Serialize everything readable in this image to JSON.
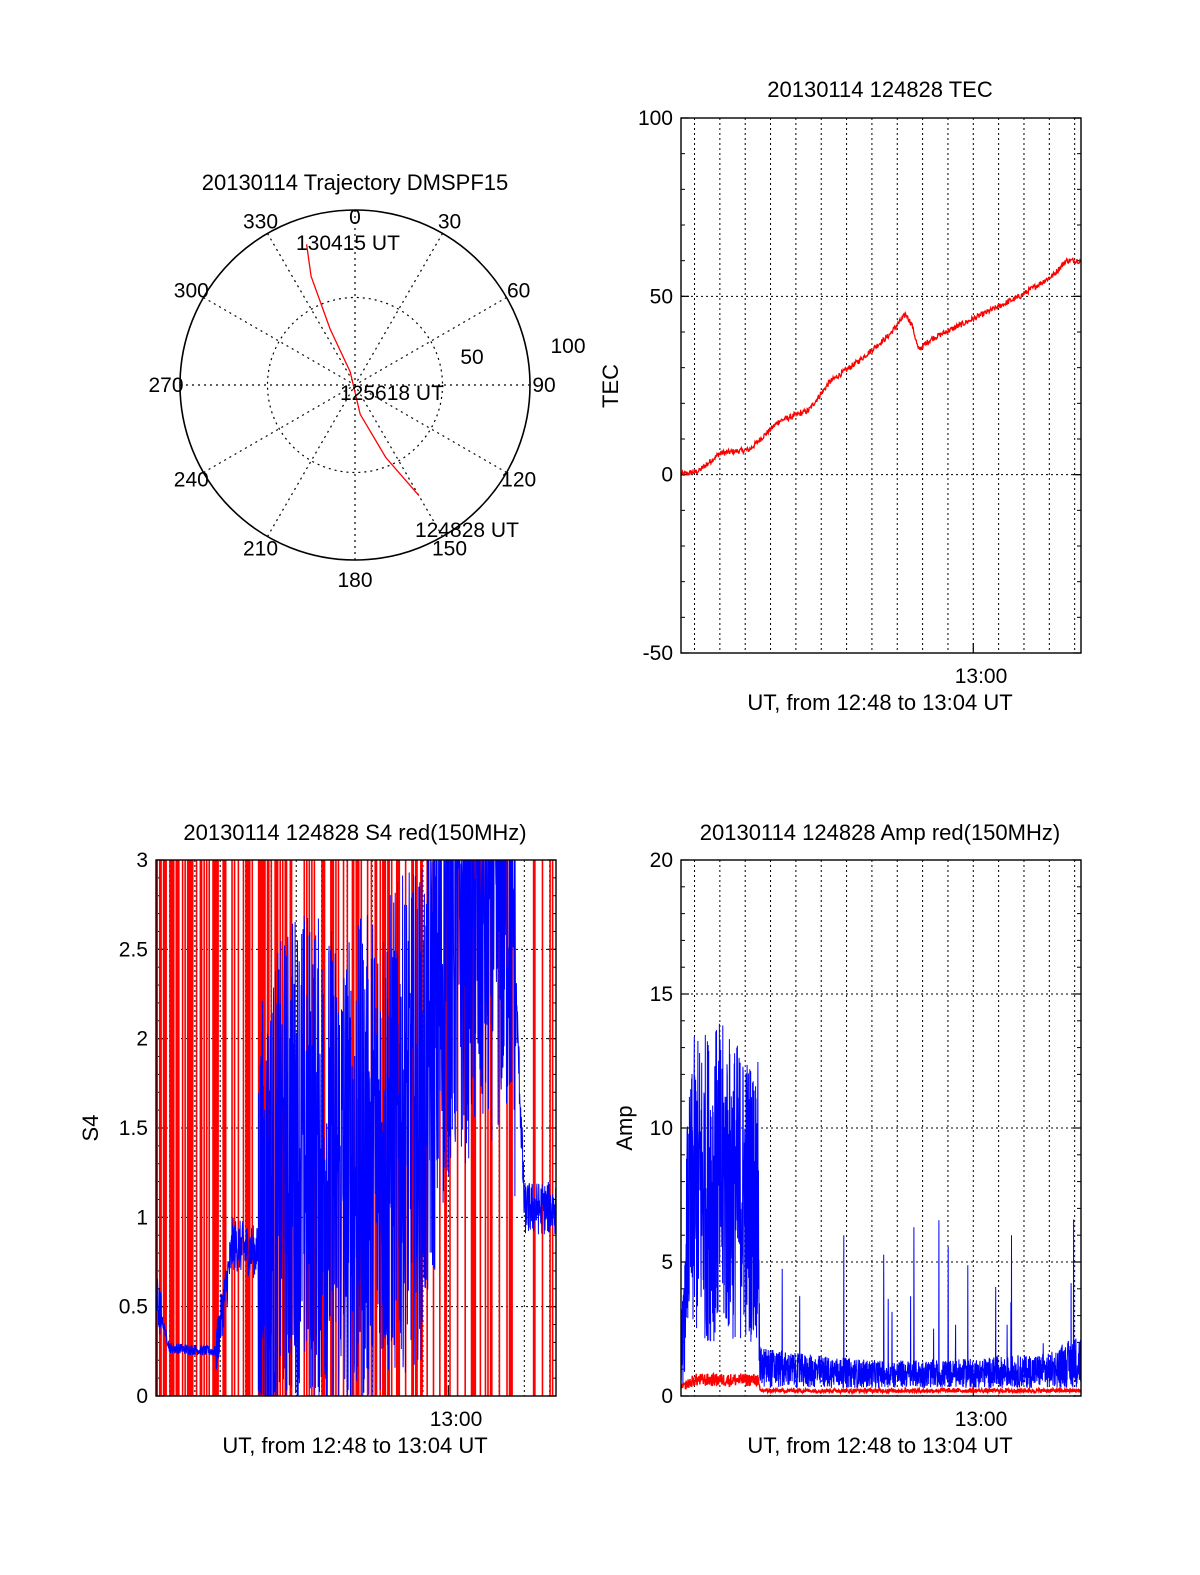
{
  "colors": {
    "red": "#ff0000",
    "blue": "#0000ff",
    "axis": "#000000",
    "grid": "#000000"
  },
  "chart_data": [
    {
      "id": "trajectory",
      "type": "polar",
      "title": "20130114 Trajectory DMSPF15",
      "angle_labels": [
        "0",
        "30",
        "60",
        "90",
        "120",
        "150",
        "180",
        "210",
        "240",
        "270",
        "300",
        "330"
      ],
      "radius_labels": [
        "50",
        "100"
      ],
      "r_max": 100,
      "grid": true,
      "track": {
        "start_label": "124828 UT",
        "mid_label": "125618 UT",
        "end_label": "130415 UT",
        "points": [
          {
            "az": 150,
            "r": 73
          },
          {
            "az": 157,
            "r": 45
          },
          {
            "az": 170,
            "r": 17
          },
          {
            "az": 340,
            "r": 8
          },
          {
            "az": 336,
            "r": 35
          },
          {
            "az": 338,
            "r": 67
          },
          {
            "az": 341,
            "r": 85
          }
        ]
      }
    },
    {
      "id": "tec",
      "type": "line",
      "title": "20130114 124828 TEC",
      "xlabel": "UT, from 12:48 to 13:04 UT",
      "ylabel": "TEC",
      "xlim": [
        "12:48:28",
        "13:04:15"
      ],
      "ylim": [
        -50,
        100
      ],
      "y_ticks": [
        "100",
        "50",
        "0",
        "-50"
      ],
      "x_ticks": [
        "13:00"
      ],
      "grid": true,
      "series": [
        {
          "color": "red",
          "x": [
            "12:48:28",
            "12:49:10",
            "12:50:00",
            "12:51:10",
            "12:52:20",
            "12:53:30",
            "12:54:20",
            "12:55:30",
            "12:56:40",
            "12:57:20",
            "12:57:35",
            "12:57:50",
            "12:58:20",
            "12:59:30",
            "13:00:40",
            "13:01:50",
            "13:03:10",
            "13:03:40",
            "13:04:15"
          ],
          "y": [
            0,
            1,
            6,
            7,
            15,
            18,
            26,
            32,
            39,
            45,
            42,
            35,
            38,
            42,
            46,
            50,
            56,
            60,
            60
          ]
        }
      ]
    },
    {
      "id": "s4",
      "type": "line",
      "title": "20130114 124828 S4 red(150MHz)",
      "xlabel": "UT, from 12:48 to 13:04 UT",
      "ylabel": "S4",
      "xlim": [
        "12:48:28",
        "13:04:15"
      ],
      "ylim": [
        0,
        3
      ],
      "y_ticks": [
        "3",
        "2.5",
        "2",
        "1.5",
        "1",
        "0.5",
        "0"
      ],
      "x_ticks": [
        "13:00"
      ],
      "grid": true,
      "series": [
        {
          "color": "red",
          "description_values": [
            0,
            3
          ]
        },
        {
          "color": "blue",
          "x": [
            "12:48:28",
            "12:49:00",
            "12:50:50",
            "12:51:30",
            "12:52:30",
            "12:54:00",
            "12:56:00",
            "12:58:00",
            "12:59:00",
            "13:00:00",
            "13:01:30",
            "13:02:30",
            "13:03:00",
            "13:04:15"
          ],
          "y": [
            0.55,
            0.27,
            0.25,
            0.85,
            0.8,
            1.4,
            1.2,
            1.5,
            1.6,
            2.6,
            2.8,
            2.9,
            1.05,
            1.05
          ]
        }
      ]
    },
    {
      "id": "amp",
      "type": "line",
      "title": "20130114 124828 Amp red(150MHz)",
      "xlabel": "UT, from 12:48 to 13:04 UT",
      "ylabel": "Amp",
      "xlim": [
        "12:48:28",
        "13:04:15"
      ],
      "ylim": [
        0,
        20
      ],
      "y_ticks": [
        "20",
        "15",
        "10",
        "5",
        "0"
      ],
      "x_ticks": [
        "13:00"
      ],
      "grid": true,
      "series": [
        {
          "color": "red",
          "x": [
            "12:48:28",
            "12:49:00",
            "12:51:30",
            "12:51:35",
            "13:04:15"
          ],
          "y": [
            0.3,
            0.6,
            0.6,
            0.2,
            0.2
          ]
        },
        {
          "color": "blue",
          "x": [
            "12:48:28",
            "12:49:00",
            "12:50:00",
            "12:51:30",
            "12:51:35",
            "12:53:00",
            "12:56:00",
            "12:59:00",
            "13:01:00",
            "13:03:00",
            "13:04:15"
          ],
          "y": [
            2,
            8,
            8.5,
            7,
            1.2,
            1.0,
            0.8,
            0.8,
            0.9,
            1.0,
            1.6
          ]
        }
      ]
    }
  ]
}
